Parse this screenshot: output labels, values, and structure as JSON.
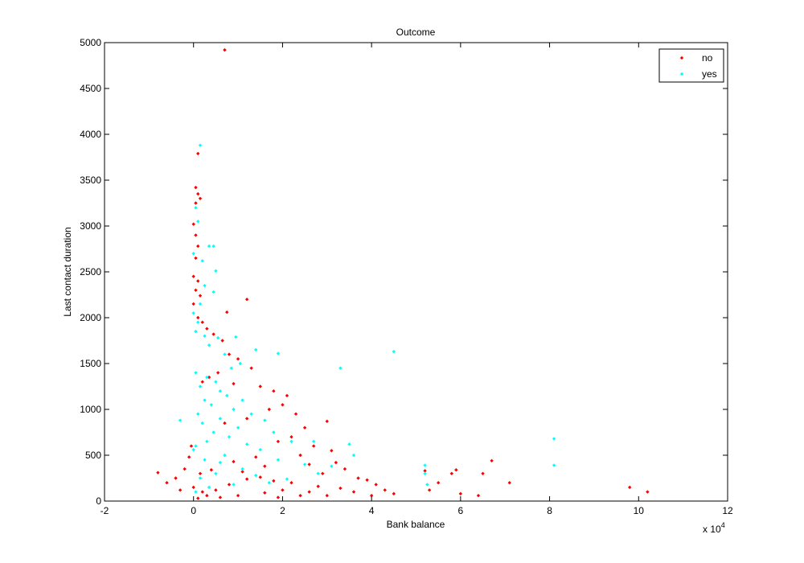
{
  "chart_data": {
    "type": "scatter",
    "title": "Outcome",
    "xlabel": "Bank balance",
    "ylabel": "Last contact duration",
    "x_multiplier_label": "x 10",
    "x_multiplier_exp": "4",
    "xlim": [
      -2,
      12
    ],
    "ylim": [
      0,
      5000
    ],
    "xticks": [
      -2,
      0,
      2,
      4,
      6,
      8,
      10,
      12
    ],
    "yticks": [
      0,
      500,
      1000,
      1500,
      2000,
      2500,
      3000,
      3500,
      4000,
      4500,
      5000
    ],
    "grid": false,
    "legend_position": "top-right",
    "series": [
      {
        "name": "no",
        "color": "#ff0000",
        "points": [
          [
            0.7,
            4920
          ],
          [
            0.1,
            3790
          ],
          [
            0.05,
            3420
          ],
          [
            0.1,
            3350
          ],
          [
            0.15,
            3300
          ],
          [
            0.05,
            3250
          ],
          [
            0.0,
            3020
          ],
          [
            0.05,
            2900
          ],
          [
            0.1,
            2780
          ],
          [
            0.05,
            2650
          ],
          [
            0.0,
            2450
          ],
          [
            0.1,
            2400
          ],
          [
            0.05,
            2300
          ],
          [
            0.15,
            2240
          ],
          [
            1.2,
            2200
          ],
          [
            0.0,
            2150
          ],
          [
            0.75,
            2060
          ],
          [
            0.1,
            2000
          ],
          [
            0.2,
            1950
          ],
          [
            0.3,
            1880
          ],
          [
            0.45,
            1820
          ],
          [
            0.65,
            1750
          ],
          [
            0.8,
            1600
          ],
          [
            1.0,
            1550
          ],
          [
            1.3,
            1450
          ],
          [
            0.55,
            1400
          ],
          [
            0.35,
            1350
          ],
          [
            0.2,
            1300
          ],
          [
            0.9,
            1280
          ],
          [
            1.5,
            1250
          ],
          [
            1.8,
            1200
          ],
          [
            2.1,
            1150
          ],
          [
            2.0,
            1050
          ],
          [
            1.7,
            1000
          ],
          [
            2.3,
            950
          ],
          [
            3.0,
            870
          ],
          [
            1.2,
            900
          ],
          [
            0.7,
            850
          ],
          [
            2.5,
            800
          ],
          [
            2.2,
            700
          ],
          [
            1.9,
            650
          ],
          [
            2.7,
            600
          ],
          [
            3.1,
            550
          ],
          [
            2.4,
            500
          ],
          [
            1.4,
            480
          ],
          [
            0.9,
            430
          ],
          [
            3.2,
            420
          ],
          [
            2.6,
            400
          ],
          [
            1.6,
            380
          ],
          [
            3.4,
            350
          ],
          [
            2.9,
            300
          ],
          [
            1.1,
            320
          ],
          [
            0.4,
            340
          ],
          [
            0.15,
            300
          ],
          [
            3.7,
            250
          ],
          [
            3.9,
            230
          ],
          [
            4.1,
            180
          ],
          [
            4.3,
            120
          ],
          [
            4.5,
            80
          ],
          [
            3.6,
            100
          ],
          [
            3.3,
            140
          ],
          [
            2.8,
            160
          ],
          [
            2.2,
            200
          ],
          [
            1.8,
            220
          ],
          [
            1.5,
            260
          ],
          [
            1.2,
            240
          ],
          [
            0.8,
            180
          ],
          [
            0.5,
            120
          ],
          [
            0.3,
            60
          ],
          [
            0.1,
            30
          ],
          [
            -0.8,
            310
          ],
          [
            -0.6,
            200
          ],
          [
            -0.4,
            250
          ],
          [
            -0.3,
            120
          ],
          [
            -0.2,
            350
          ],
          [
            -0.1,
            480
          ],
          [
            -0.05,
            600
          ],
          [
            0.0,
            150
          ],
          [
            5.2,
            330
          ],
          [
            5.5,
            200
          ],
          [
            5.8,
            300
          ],
          [
            5.9,
            340
          ],
          [
            6.5,
            300
          ],
          [
            6.7,
            440
          ],
          [
            7.1,
            200
          ],
          [
            9.8,
            150
          ],
          [
            10.2,
            100
          ],
          [
            6.0,
            80
          ],
          [
            6.4,
            60
          ],
          [
            5.3,
            120
          ],
          [
            4.0,
            60
          ],
          [
            2.0,
            120
          ],
          [
            2.4,
            60
          ],
          [
            1.6,
            90
          ],
          [
            1.0,
            60
          ],
          [
            0.6,
            40
          ],
          [
            1.9,
            40
          ],
          [
            2.6,
            100
          ],
          [
            3.0,
            60
          ],
          [
            0.2,
            100
          ]
        ]
      },
      {
        "name": "yes",
        "color": "#00ffff",
        "points": [
          [
            0.15,
            3880
          ],
          [
            0.05,
            3200
          ],
          [
            0.1,
            3050
          ],
          [
            0.0,
            2700
          ],
          [
            0.2,
            2620
          ],
          [
            0.35,
            2780
          ],
          [
            0.45,
            2780
          ],
          [
            0.5,
            2510
          ],
          [
            0.25,
            2350
          ],
          [
            0.45,
            2280
          ],
          [
            0.15,
            2150
          ],
          [
            0.0,
            2050
          ],
          [
            0.1,
            1950
          ],
          [
            0.05,
            1850
          ],
          [
            0.25,
            1800
          ],
          [
            0.55,
            1780
          ],
          [
            0.95,
            1790
          ],
          [
            1.4,
            1650
          ],
          [
            1.9,
            1610
          ],
          [
            3.3,
            1450
          ],
          [
            4.5,
            1630
          ],
          [
            0.35,
            1700
          ],
          [
            0.7,
            1600
          ],
          [
            1.05,
            1500
          ],
          [
            0.85,
            1450
          ],
          [
            0.05,
            1400
          ],
          [
            0.3,
            1350
          ],
          [
            0.5,
            1300
          ],
          [
            0.15,
            1250
          ],
          [
            0.6,
            1200
          ],
          [
            0.75,
            1150
          ],
          [
            0.25,
            1100
          ],
          [
            1.1,
            1100
          ],
          [
            0.4,
            1050
          ],
          [
            0.9,
            1000
          ],
          [
            1.3,
            950
          ],
          [
            0.1,
            950
          ],
          [
            0.6,
            900
          ],
          [
            1.6,
            880
          ],
          [
            0.2,
            850
          ],
          [
            1.0,
            800
          ],
          [
            0.45,
            750
          ],
          [
            1.8,
            750
          ],
          [
            0.8,
            700
          ],
          [
            0.3,
            650
          ],
          [
            2.2,
            650
          ],
          [
            1.2,
            620
          ],
          [
            0.05,
            600
          ],
          [
            1.5,
            560
          ],
          [
            2.7,
            650
          ],
          [
            3.5,
            620
          ],
          [
            3.6,
            500
          ],
          [
            0.7,
            500
          ],
          [
            0.25,
            450
          ],
          [
            1.9,
            450
          ],
          [
            2.5,
            400
          ],
          [
            3.1,
            380
          ],
          [
            1.1,
            350
          ],
          [
            0.5,
            300
          ],
          [
            2.8,
            300
          ],
          [
            0.15,
            250
          ],
          [
            1.7,
            200
          ],
          [
            0.9,
            180
          ],
          [
            0.35,
            150
          ],
          [
            0.05,
            100
          ],
          [
            5.2,
            390
          ],
          [
            5.2,
            300
          ],
          [
            5.25,
            180
          ],
          [
            8.1,
            680
          ],
          [
            8.1,
            390
          ],
          [
            -0.3,
            880
          ],
          [
            0.0,
            560
          ],
          [
            0.6,
            420
          ],
          [
            1.4,
            280
          ],
          [
            2.1,
            240
          ]
        ]
      }
    ]
  }
}
